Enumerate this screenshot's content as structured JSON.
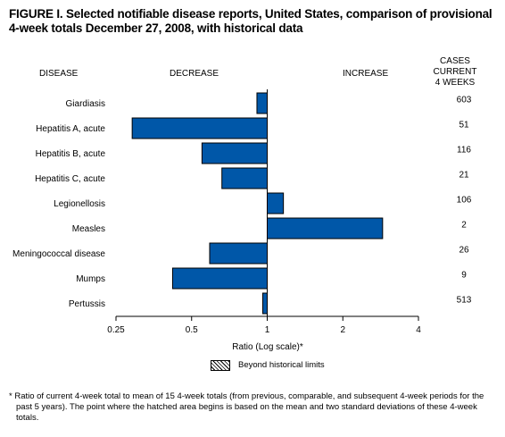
{
  "title": "FIGURE I. Selected notifiable disease reports, United States, comparison of provisional 4-week totals December 27, 2008, with historical data",
  "headers": {
    "disease": "DISEASE",
    "decrease": "DECREASE",
    "increase": "INCREASE",
    "cases_line1": "CASES CURRENT",
    "cases_line2": "4 WEEKS"
  },
  "legend": {
    "label": "Beyond historical limits"
  },
  "footnote": "* Ratio of current 4-week total to mean of 15 4-week totals (from previous, comparable, and subsequent 4-week periods for the past 5 years). The point where the hatched area begins is based on the mean and two standard deviations of these 4-week totals.",
  "colors": {
    "bar": "#0057a8",
    "bar_border": "#000000"
  },
  "chart_data": {
    "type": "bar",
    "orientation": "horizontal",
    "xscale": "log2",
    "xlim": [
      0.25,
      4
    ],
    "xticks": [
      0.25,
      0.5,
      1,
      2,
      4
    ],
    "xtick_labels": [
      "0.25",
      "0.5",
      "1",
      "2",
      "4"
    ],
    "xlabel": "Ratio (Log scale)*",
    "baseline": 1,
    "categories": [
      "Giardiasis",
      "Hepatitis A, acute",
      "Hepatitis B, acute",
      "Hepatitis C, acute",
      "Legionellosis",
      "Measles",
      "Meningococcal disease",
      "Mumps",
      "Pertussis"
    ],
    "values": [
      0.91,
      0.29,
      0.55,
      0.66,
      1.16,
      2.88,
      0.59,
      0.42,
      0.96
    ],
    "cases_current_4_weeks": [
      "603",
      "51",
      "116",
      "21",
      "106",
      "2",
      "26",
      "9",
      "513"
    ]
  }
}
